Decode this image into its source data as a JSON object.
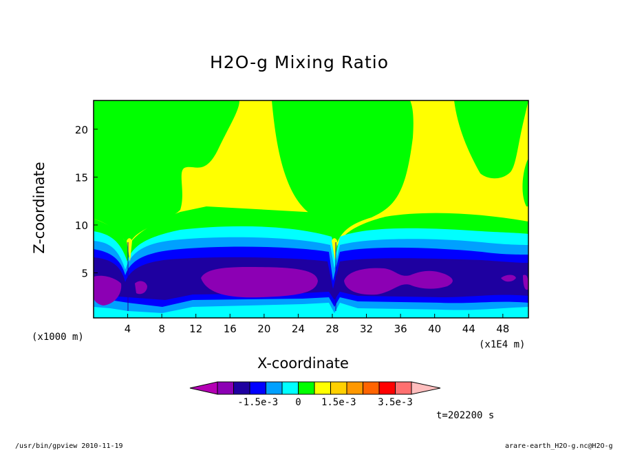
{
  "chart_data": {
    "type": "contour",
    "title": "H2O-g Mixing Ratio",
    "xlabel": "X-coordinate",
    "ylabel": "Z-coordinate",
    "x_unit": "(x1E4 m)",
    "y_unit": "(x1000 m)",
    "xlim": [
      0,
      51
    ],
    "ylim": [
      0.3,
      23
    ],
    "x_ticks": [
      4,
      8,
      12,
      16,
      20,
      24,
      28,
      32,
      36,
      40,
      44,
      48
    ],
    "y_ticks": [
      5,
      10,
      15,
      20
    ],
    "colorbar": {
      "colors": [
        "#b400b4",
        "#8c00b4",
        "#1e00a0",
        "#0000ff",
        "#00a0ff",
        "#00ffff",
        "#00ff00",
        "#ffff00",
        "#ffd000",
        "#ff9800",
        "#ff6400",
        "#ff0000",
        "#ff7070",
        "#ffbebe"
      ],
      "tick_labels": [
        "-1.5e-3",
        "0",
        "1.5e-3",
        "3.5e-3"
      ]
    },
    "annotation_time": "t=202200 s"
  },
  "footer": {
    "left": "/usr/bin/gpview  2010-11-19",
    "right": "arare-earth_H2O-g.nc@H2O-g"
  },
  "colors": {
    "yellow": "#ffff00",
    "green": "#00ff00",
    "cyan": "#00ffff",
    "sky": "#00a0ff",
    "blue": "#0000ff",
    "navy": "#1e00a0",
    "purple": "#8c00b4"
  }
}
